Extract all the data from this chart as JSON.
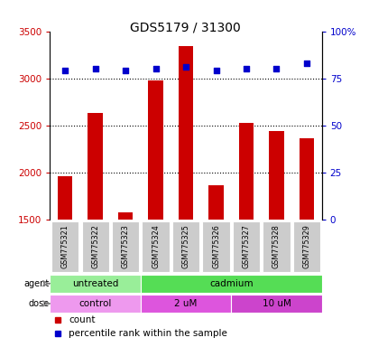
{
  "title": "GDS5179 / 31300",
  "samples": [
    "GSM775321",
    "GSM775322",
    "GSM775323",
    "GSM775324",
    "GSM775325",
    "GSM775326",
    "GSM775327",
    "GSM775328",
    "GSM775329"
  ],
  "counts": [
    1960,
    2630,
    1580,
    2980,
    3340,
    1870,
    2530,
    2440,
    2370
  ],
  "percentiles": [
    79,
    80,
    79,
    80,
    81,
    79,
    80,
    80,
    83
  ],
  "ylim_left": [
    1500,
    3500
  ],
  "ylim_right": [
    0,
    100
  ],
  "yticks_left": [
    1500,
    2000,
    2500,
    3000,
    3500
  ],
  "yticks_right": [
    0,
    25,
    50,
    75,
    100
  ],
  "ytick_labels_right": [
    "0",
    "25",
    "50",
    "75",
    "100%"
  ],
  "bar_color": "#cc0000",
  "dot_color": "#0000cc",
  "agent_groups": [
    {
      "label": "untreated",
      "start": 0,
      "end": 3,
      "color": "#99ee99"
    },
    {
      "label": "cadmium",
      "start": 3,
      "end": 9,
      "color": "#55dd55"
    }
  ],
  "dose_groups": [
    {
      "label": "control",
      "start": 0,
      "end": 3,
      "color": "#ee99ee"
    },
    {
      "label": "2 uM",
      "start": 3,
      "end": 6,
      "color": "#dd55dd"
    },
    {
      "label": "10 uM",
      "start": 6,
      "end": 9,
      "color": "#cc44cc"
    }
  ],
  "legend_count_color": "#cc0000",
  "legend_dot_color": "#0000cc",
  "bg_color": "#ffffff",
  "tick_bg": "#cccccc",
  "grid_color": "#000000"
}
